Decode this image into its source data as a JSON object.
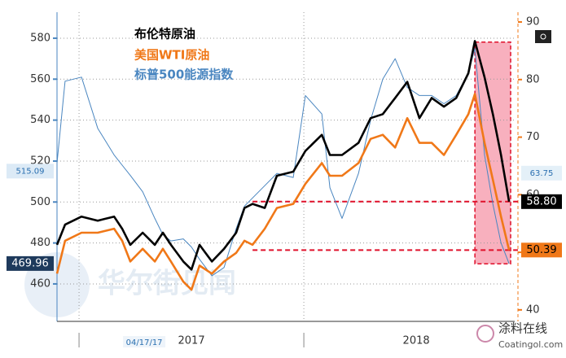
{
  "chart_data": {
    "type": "line",
    "legend": [
      "布伦特原油",
      "美国WTI原油",
      "标普500能源指数"
    ],
    "x": [
      2016.902,
      2016.938,
      2017.011,
      2017.083,
      2017.156,
      2017.192,
      2017.228,
      2017.283,
      2017.337,
      2017.373,
      2017.409,
      2017.464,
      2017.5,
      2017.536,
      2017.591,
      2017.645,
      2017.699,
      2017.736,
      2017.772,
      2017.826,
      2017.88,
      2017.953,
      2018.007,
      2018.08,
      2018.116,
      2018.17,
      2018.243,
      2018.297,
      2018.351,
      2018.406,
      2018.46,
      2018.514,
      2018.569,
      2018.623,
      2018.678,
      2018.732,
      2018.761,
      2018.804,
      2018.841,
      2018.877,
      2018.913
    ],
    "series": [
      {
        "name": "布伦特原油",
        "color": "#000000",
        "axis": "y2",
        "values": [
          51.3,
          54.8,
          56.2,
          55.5,
          56.2,
          54.1,
          51.3,
          53.4,
          51.3,
          53.4,
          51.3,
          48.4,
          47.0,
          51.3,
          48.4,
          50.6,
          53.4,
          57.7,
          58.4,
          57.7,
          63.3,
          64.0,
          67.6,
          70.4,
          66.9,
          66.9,
          69.0,
          73.3,
          74.0,
          76.8,
          79.6,
          73.3,
          76.8,
          75.3,
          76.8,
          81.1,
          86.7,
          80.4,
          74.0,
          66.9,
          58.8
        ]
      },
      {
        "name": "美国WTI原油",
        "color": "#f07818",
        "axis": "y2",
        "values": [
          46.3,
          52.0,
          53.4,
          53.4,
          54.1,
          52.0,
          48.4,
          50.6,
          48.4,
          50.6,
          48.4,
          44.9,
          43.5,
          47.7,
          46.3,
          48.4,
          49.9,
          52.0,
          51.3,
          54.1,
          57.7,
          58.4,
          61.9,
          65.5,
          63.3,
          63.3,
          65.5,
          69.7,
          70.4,
          68.2,
          73.3,
          69.0,
          69.0,
          66.9,
          70.4,
          74.0,
          77.5,
          69.0,
          62.6,
          56.2,
          50.39
        ]
      },
      {
        "name": "标普500能源指数",
        "color": "#4a86c0",
        "axis": "y",
        "values": [
          519,
          559,
          561,
          536,
          523,
          518,
          513,
          505,
          492,
          484,
          481,
          482,
          478,
          472,
          464,
          468,
          487,
          498,
          502,
          508,
          514,
          512,
          552,
          543,
          507,
          492,
          514,
          540,
          560,
          570,
          556,
          552,
          552,
          548,
          552,
          563,
          575,
          523,
          499,
          480,
          469.96
        ]
      }
    ],
    "xlim": [
      2016.902,
      2018.938
    ],
    "xticks": [
      {
        "value": 2017,
        "label": "2017"
      },
      {
        "value": 2018,
        "label": "2018"
      }
    ],
    "ylim": [
      441.7,
      592.7
    ],
    "yticks": [
      460,
      480,
      500,
      520,
      540,
      560,
      580
    ],
    "y2lim": [
      38,
      91.7
    ],
    "y2ticks": [
      40,
      50,
      60,
      70,
      80,
      90
    ],
    "grid": true,
    "cursor_date": {
      "value": 2017.29,
      "label": "04/17/17"
    },
    "value_tags": [
      {
        "axis": "y",
        "value": 515.09,
        "label": "515.09",
        "color": "#dceaf6",
        "text_color": "#2a6fb0"
      },
      {
        "axis": "y",
        "value": 469.96,
        "label": "469.96",
        "color": "#1e3a5c",
        "text_color": "#ffffff"
      },
      {
        "axis": "y2",
        "value": 63.75,
        "label": "63.75",
        "color": "#e4f0f8",
        "text_color": "#2a6fb0"
      },
      {
        "axis": "y2",
        "value": 58.8,
        "label": "58.80",
        "color": "#000000",
        "text_color": "#ffffff"
      },
      {
        "axis": "y2",
        "value": 50.39,
        "label": "50.39",
        "color": "#f07818",
        "text_color": "#000000"
      }
    ],
    "reference_lines": [
      {
        "axis": "y2",
        "value": 58.8,
        "x_start": 2017.772
      },
      {
        "axis": "y2",
        "value": 50.39,
        "x_start": 2017.772
      }
    ],
    "highlight": {
      "xlim": [
        2018.761,
        2018.92
      ],
      "y2lim": [
        48,
        86.5
      ]
    },
    "watermark": "华尔街见闻",
    "source_logo": {
      "name": "涂料在线",
      "url": "Coatingol.com"
    }
  }
}
